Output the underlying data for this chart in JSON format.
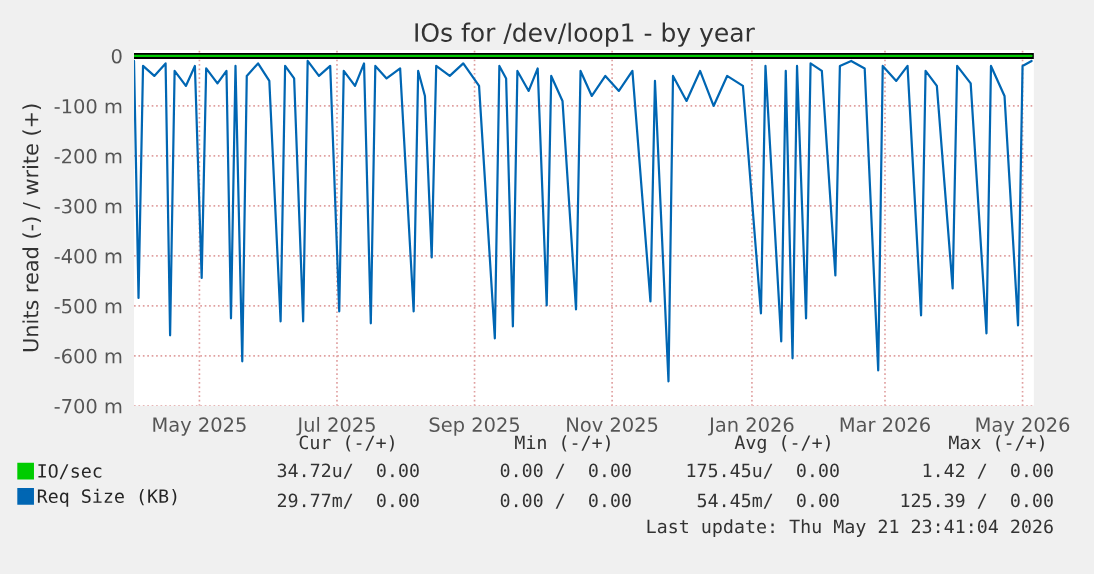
{
  "chart_data": {
    "type": "line",
    "title": "IOs for /dev/loop1 - by year",
    "ylabel": "Units read (-) / write (+)",
    "xlim": [
      "2025-04-17",
      "2026-05-21"
    ],
    "xticks": [
      {
        "value": "2025-05-16",
        "label": "May 2025"
      },
      {
        "value": "2025-07-16",
        "label": "Jul 2025"
      },
      {
        "value": "2025-09-15",
        "label": "Sep 2025"
      },
      {
        "value": "2025-11-15",
        "label": "Nov 2025"
      },
      {
        "value": "2026-01-16",
        "label": "Jan 2026"
      },
      {
        "value": "2026-03-16",
        "label": "Mar 2026"
      },
      {
        "value": "2026-05-16",
        "label": "May 2026"
      }
    ],
    "ylim": [
      -700,
      12
    ],
    "yticks": [
      {
        "value": -700,
        "label": "-700 m"
      },
      {
        "value": -600,
        "label": "-600 m"
      },
      {
        "value": -500,
        "label": "-500 m"
      },
      {
        "value": -400,
        "label": "-400 m"
      },
      {
        "value": -300,
        "label": "-300 m"
      },
      {
        "value": -200,
        "label": "-200 m"
      },
      {
        "value": -100,
        "label": "-100 m"
      },
      0
    ],
    "grid": true,
    "legend": "bottom left",
    "ref_lines": [
      {
        "axis": "y",
        "value": 0,
        "color": "#000000"
      }
    ],
    "series": [
      {
        "name": "IO/sec",
        "color": "#00cc00",
        "x": [
          "2025-04-17",
          "2026-05-20"
        ],
        "values": [
          0,
          0
        ]
      },
      {
        "name": "Req Size (KB)",
        "color": "#0066b3",
        "x": [
          "2025-04-17",
          "2025-04-19",
          "2025-04-21",
          "2025-04-26",
          "2025-05-01",
          "2025-05-03",
          "2025-05-05",
          "2025-05-10",
          "2025-05-14",
          "2025-05-17",
          "2025-05-19",
          "2025-05-24",
          "2025-05-28",
          "2025-05-30",
          "2025-06-01",
          "2025-06-04",
          "2025-06-06",
          "2025-06-11",
          "2025-06-16",
          "2025-06-21",
          "2025-06-23",
          "2025-06-27",
          "2025-07-01",
          "2025-07-03",
          "2025-07-08",
          "2025-07-13",
          "2025-07-17",
          "2025-07-19",
          "2025-07-24",
          "2025-07-28",
          "2025-07-31",
          "2025-08-02",
          "2025-08-07",
          "2025-08-13",
          "2025-08-19",
          "2025-08-21",
          "2025-08-24",
          "2025-08-27",
          "2025-08-29",
          "2025-09-04",
          "2025-09-10",
          "2025-09-17",
          "2025-09-24",
          "2025-09-26",
          "2025-09-29",
          "2025-10-02",
          "2025-10-04",
          "2025-10-09",
          "2025-10-13",
          "2025-10-17",
          "2025-10-19",
          "2025-10-24",
          "2025-10-30",
          "2025-11-01",
          "2025-11-06",
          "2025-11-12",
          "2025-11-18",
          "2025-11-24",
          "2025-12-02",
          "2025-12-04",
          "2025-12-10",
          "2025-12-12",
          "2025-12-18",
          "2025-12-24",
          "2025-12-30",
          "2026-01-05",
          "2026-01-12",
          "2026-01-20",
          "2026-01-22",
          "2026-01-29",
          "2026-01-31",
          "2026-02-03",
          "2026-02-05",
          "2026-02-09",
          "2026-02-11",
          "2026-02-16",
          "2026-02-22",
          "2026-02-24",
          "2026-03-01",
          "2026-03-07",
          "2026-03-13",
          "2026-03-15",
          "2026-03-21",
          "2026-03-26",
          "2026-04-01",
          "2026-04-03",
          "2026-04-08",
          "2026-04-15",
          "2026-04-17",
          "2026-04-23",
          "2026-04-30",
          "2026-05-02",
          "2026-05-08",
          "2026-05-14",
          "2026-05-16",
          "2026-05-20"
        ],
        "values": [
          -10,
          -484,
          -20,
          -40,
          -15,
          -559,
          -30,
          -60,
          -20,
          -444,
          -25,
          -55,
          -30,
          -525,
          -20,
          -611,
          -40,
          -15,
          -50,
          -531,
          -20,
          -45,
          -531,
          -10,
          -40,
          -20,
          -511,
          -30,
          -60,
          -15,
          -535,
          -20,
          -45,
          -25,
          -511,
          -30,
          -80,
          -403,
          -20,
          -40,
          -15,
          -60,
          -565,
          -20,
          -45,
          -541,
          -30,
          -70,
          -25,
          -499,
          -40,
          -90,
          -507,
          -30,
          -80,
          -40,
          -70,
          -30,
          -491,
          -50,
          -651,
          -40,
          -90,
          -30,
          -100,
          -40,
          -60,
          -515,
          -20,
          -571,
          -30,
          -605,
          -20,
          -525,
          -15,
          -30,
          -439,
          -20,
          -10,
          -25,
          -629,
          -20,
          -50,
          -20,
          -519,
          -30,
          -60,
          -465,
          -20,
          -55,
          -555,
          -20,
          -80,
          -539,
          -20,
          -10
        ]
      }
    ],
    "annotations": [
      "Cur (-/+)",
      "Min (-/+)",
      "Avg (-/+)",
      "Max (-/+)",
      "34.72u/  0.00",
      "0.00 /  0.00",
      "175.45u/  0.00",
      "1.42 /  0.00",
      "29.77m/  0.00",
      "0.00 /  0.00",
      "54.45m/  0.00",
      "125.39 /  0.00",
      "Last update: Thu May 21 23:41:04 2026"
    ]
  }
}
